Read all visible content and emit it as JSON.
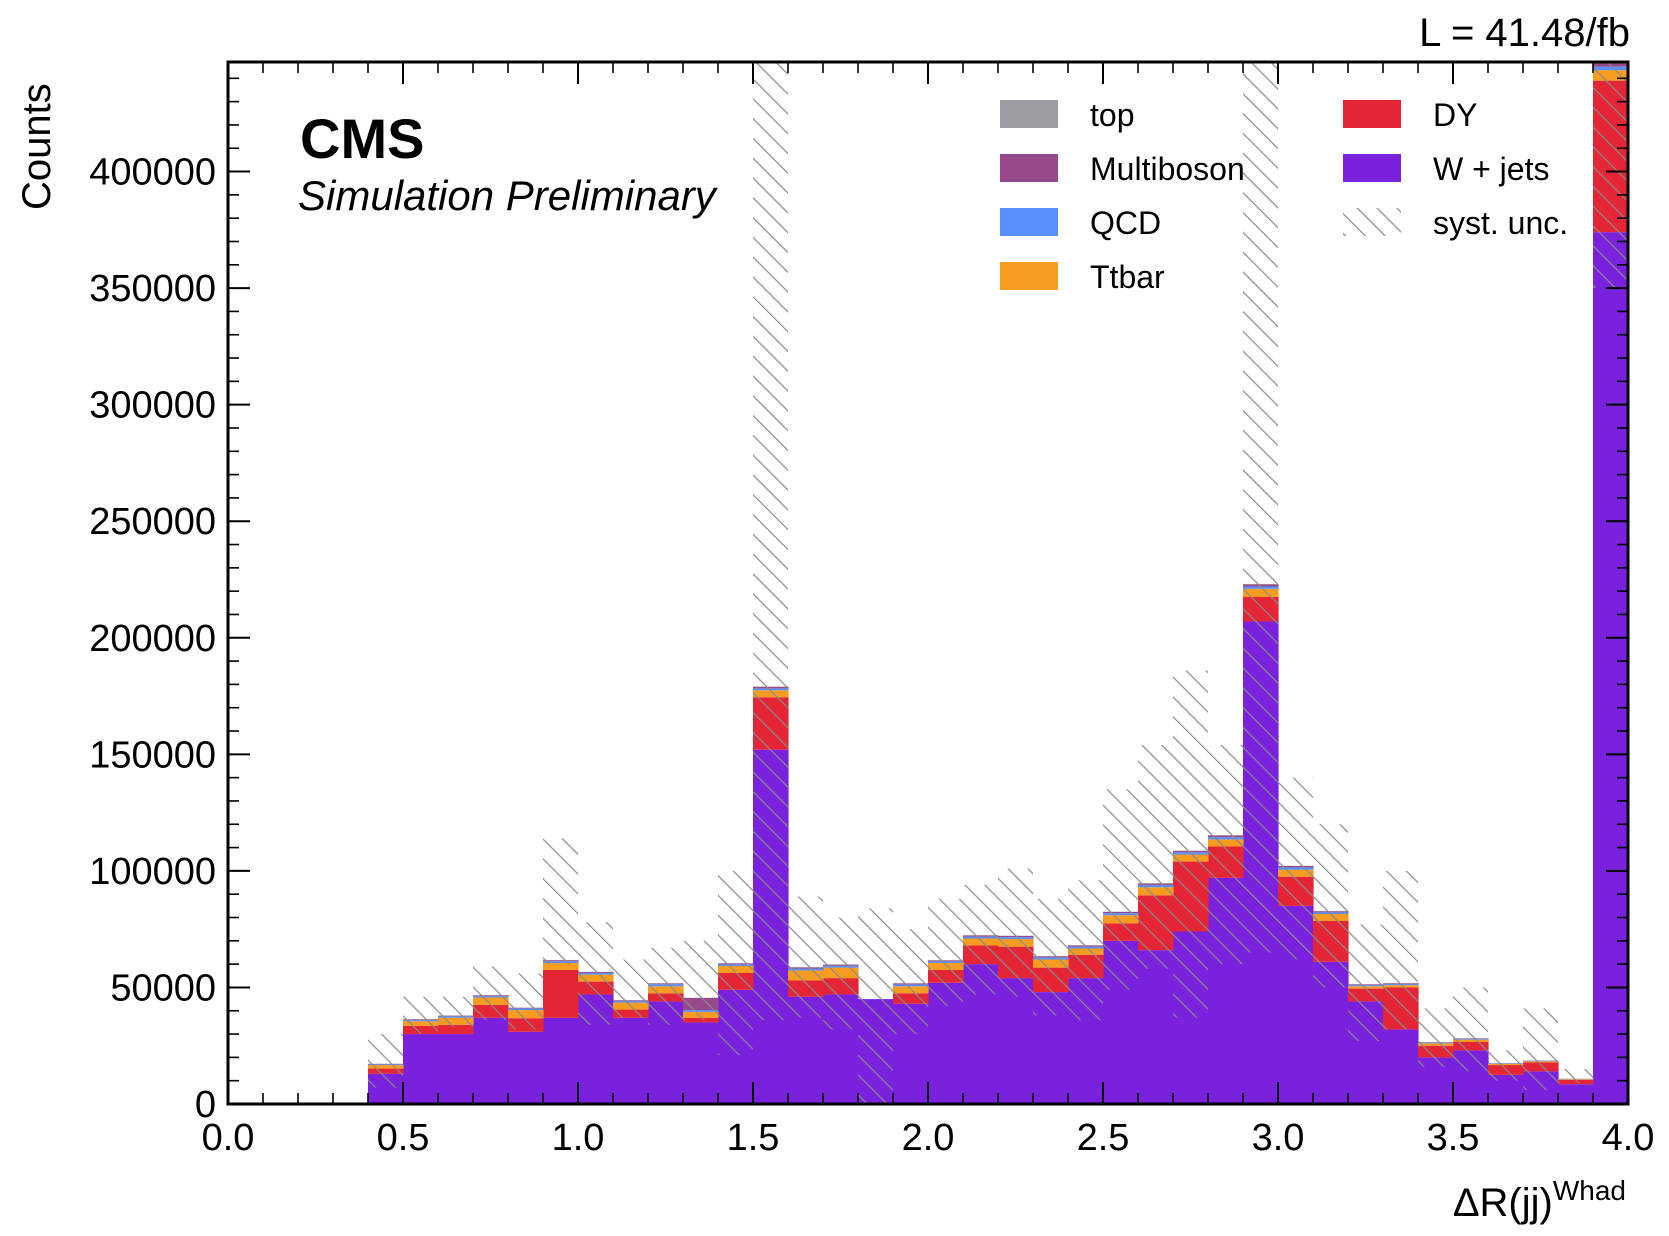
{
  "chart_data": {
    "type": "bar",
    "stacked": true,
    "histogram": true,
    "xlabel": "ΔR(jj)",
    "xlabel_sup": "Whad",
    "ylabel": "Counts",
    "xlim": [
      0.0,
      4.0
    ],
    "ylim": [
      0,
      447000
    ],
    "x_ticks": [
      0.0,
      0.5,
      1.0,
      1.5,
      2.0,
      2.5,
      3.0,
      3.5,
      4.0
    ],
    "x_tick_labels": [
      "0.0",
      "0.5",
      "1.0",
      "1.5",
      "2.0",
      "2.5",
      "3.0",
      "3.5",
      "4.0"
    ],
    "y_ticks": [
      0,
      50000,
      100000,
      150000,
      200000,
      250000,
      300000,
      350000,
      400000
    ],
    "y_tick_labels": [
      "0",
      "50000",
      "100000",
      "150000",
      "200000",
      "250000",
      "300000",
      "350000",
      "400000"
    ],
    "bin_edges": [
      0.0,
      0.1,
      0.2,
      0.3,
      0.4,
      0.5,
      0.6,
      0.7,
      0.8,
      0.9,
      1.0,
      1.1,
      1.2,
      1.3,
      1.4,
      1.5,
      1.6,
      1.7,
      1.8,
      1.9,
      2.0,
      2.1,
      2.2,
      2.3,
      2.4,
      2.5,
      2.6,
      2.7,
      2.8,
      2.9,
      3.0,
      3.1,
      3.2,
      3.3,
      3.4,
      3.5,
      3.6,
      3.7,
      3.8,
      3.9,
      4.0
    ],
    "series": [
      {
        "name": "W + jets",
        "color": "#7a21dd",
        "values": [
          0,
          0,
          0,
          0,
          13000,
          30000,
          30000,
          37000,
          31000,
          37000,
          47000,
          37000,
          44000,
          35000,
          49000,
          152000,
          46000,
          47000,
          45000,
          43000,
          52000,
          60000,
          54000,
          48000,
          54000,
          70000,
          66000,
          74000,
          97000,
          207000,
          85000,
          61000,
          44000,
          32000,
          20000,
          23000,
          12500,
          14000,
          8500,
          374000
        ]
      },
      {
        "name": "DY",
        "color": "#e42536",
        "values": [
          0,
          0,
          0,
          0,
          2200,
          3500,
          4000,
          5500,
          5800,
          20500,
          5500,
          3500,
          3500,
          2000,
          7200,
          22500,
          7000,
          7000,
          0,
          4500,
          5500,
          8000,
          13500,
          10500,
          10000,
          7500,
          23500,
          30000,
          13500,
          10500,
          12500,
          17500,
          5500,
          18000,
          5000,
          3600,
          4200,
          3800,
          1800,
          65000
        ]
      },
      {
        "name": "Ttbar",
        "color": "#f89c20",
        "values": [
          0,
          0,
          0,
          0,
          1500,
          2000,
          3000,
          3200,
          3500,
          3000,
          3000,
          3000,
          3000,
          2500,
          3000,
          3000,
          4300,
          4500,
          0,
          3000,
          3000,
          3000,
          3300,
          3500,
          2700,
          3500,
          3500,
          3000,
          3000,
          3500,
          3000,
          3000,
          1000,
          1000,
          1000,
          1000,
          500,
          500,
          300,
          4500
        ]
      },
      {
        "name": "QCD",
        "color": "#5790fc",
        "values": [
          0,
          0,
          0,
          0,
          300,
          500,
          600,
          600,
          700,
          800,
          700,
          700,
          900,
          800,
          700,
          800,
          800,
          800,
          0,
          800,
          700,
          800,
          800,
          900,
          800,
          900,
          1000,
          1000,
          1000,
          1000,
          1000,
          700,
          500,
          500,
          300,
          300,
          200,
          200,
          100,
          1500
        ]
      },
      {
        "name": "Multiboson",
        "color": "#964a8b",
        "values": [
          0,
          0,
          0,
          0,
          200,
          300,
          300,
          300,
          300,
          400,
          400,
          300,
          300,
          5200,
          400,
          600,
          500,
          500,
          0,
          400,
          400,
          500,
          500,
          500,
          500,
          500,
          600,
          600,
          700,
          900,
          600,
          500,
          300,
          300,
          200,
          200,
          100,
          100,
          100,
          1500
        ]
      },
      {
        "name": "top",
        "color": "#9c9ca1",
        "values": [
          0,
          0,
          0,
          0,
          100,
          100,
          100,
          100,
          100,
          100,
          100,
          100,
          100,
          100,
          100,
          200,
          100,
          100,
          0,
          100,
          100,
          100,
          100,
          100,
          100,
          100,
          100,
          100,
          100,
          200,
          100,
          100,
          100,
          100,
          100,
          100,
          100,
          100,
          100,
          500
        ]
      }
    ],
    "syst_unc": {
      "name": "syst. unc.",
      "lower": [
        0,
        0,
        0,
        0,
        7000,
        30000,
        33000,
        36000,
        32000,
        60000,
        34000,
        37000,
        34000,
        36000,
        21000,
        36000,
        37000,
        32000,
        0,
        30000,
        42000,
        47000,
        46000,
        38000,
        36000,
        49000,
        58000,
        37000,
        60000,
        65000,
        62000,
        50000,
        27000,
        32000,
        16000,
        14000,
        10000,
        6000,
        9000,
        350000
      ],
      "upper": [
        0,
        0,
        0,
        0,
        30000,
        46000,
        46000,
        59000,
        56000,
        114000,
        78000,
        62000,
        67000,
        70000,
        100000,
        447000,
        89000,
        80000,
        84000,
        75000,
        88000,
        94000,
        101000,
        88000,
        96000,
        135000,
        154000,
        186000,
        154000,
        447000,
        140000,
        120000,
        77000,
        100000,
        41000,
        50000,
        23000,
        41000,
        15000,
        447000
      ]
    },
    "legend_placement": "top-right",
    "legend": [
      {
        "label": "top",
        "color": "#9c9ca1",
        "kind": "fill"
      },
      {
        "label": "Multiboson",
        "color": "#964a8b",
        "kind": "fill"
      },
      {
        "label": "QCD",
        "color": "#5790fc",
        "kind": "fill"
      },
      {
        "label": "Ttbar",
        "color": "#f89c20",
        "kind": "fill"
      },
      {
        "label": "DY",
        "color": "#e42536",
        "kind": "fill"
      },
      {
        "label": "W + jets",
        "color": "#7a21dd",
        "kind": "fill"
      },
      {
        "label": "syst. unc.",
        "color": "#888888",
        "kind": "hatch"
      }
    ],
    "grid": false
  },
  "labels": {
    "cms": "CMS",
    "cms_sub": "Simulation Preliminary",
    "lumi": "L = 41.48/fb"
  }
}
